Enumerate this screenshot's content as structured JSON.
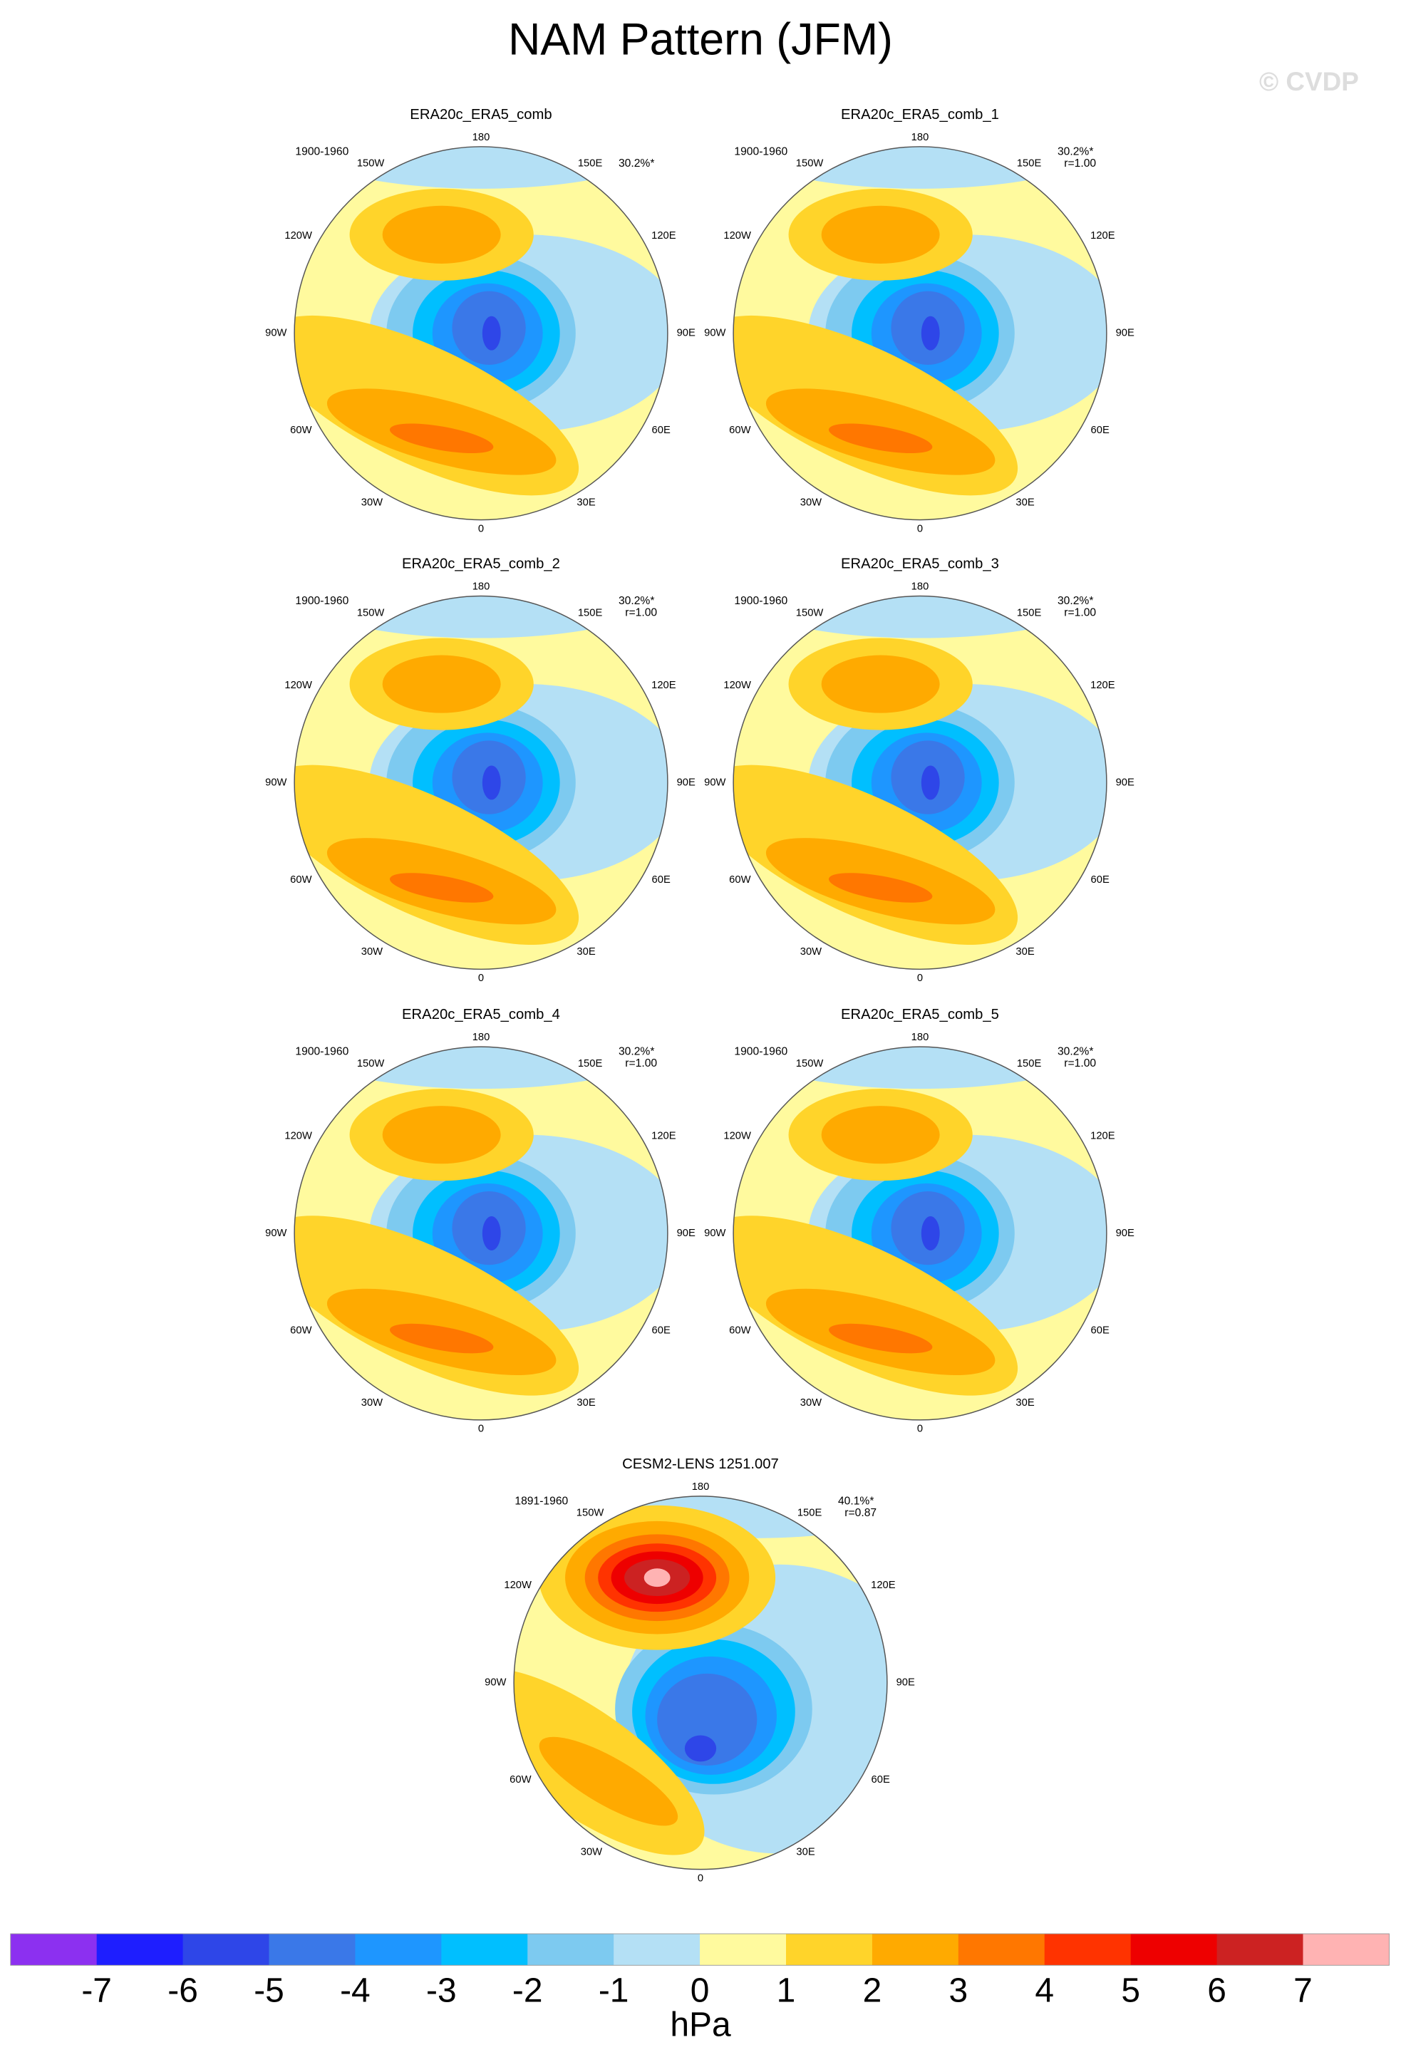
{
  "title": "NAM Pattern (JFM)",
  "watermark": "© CVDP",
  "lon_labels": [
    "180",
    "150E",
    "120E",
    "90E",
    "60E",
    "30E",
    "0",
    "30W",
    "60W",
    "90W",
    "120W",
    "150W"
  ],
  "panels": [
    {
      "title": "ERA20c_ERA5_comb",
      "period": "1900-1960",
      "pct": "30.2%*"
    },
    {
      "title": "ERA20c_ERA5_comb_1",
      "period": "1900-1960",
      "pct": "30.2%*",
      "r": "r=1.00"
    },
    {
      "title": "ERA20c_ERA5_comb_2",
      "period": "1900-1960",
      "pct": "30.2%*",
      "r": "r=1.00"
    },
    {
      "title": "ERA20c_ERA5_comb_3",
      "period": "1900-1960",
      "pct": "30.2%*",
      "r": "r=1.00"
    },
    {
      "title": "ERA20c_ERA5_comb_4",
      "period": "1900-1960",
      "pct": "30.2%*",
      "r": "r=1.00"
    },
    {
      "title": "ERA20c_ERA5_comb_5",
      "period": "1900-1960",
      "pct": "30.2%*",
      "r": "r=1.00"
    },
    {
      "title": "CESM2-LENS 1251.007",
      "period": "1891-1960",
      "pct": "40.1%*",
      "r": "r=0.87"
    }
  ],
  "colorbar": {
    "label": "hPa",
    "range": [
      -8,
      8
    ],
    "ticks": [
      -7,
      -6,
      -5,
      -4,
      -3,
      -2,
      -1,
      0,
      1,
      2,
      3,
      4,
      5,
      6,
      7
    ],
    "colors": [
      "#8c30f0",
      "#1e1eff",
      "#2e46e8",
      "#3a78e8",
      "#1e96ff",
      "#00bfff",
      "#7dcaf0",
      "#b4e0f5",
      "#fffa9e",
      "#ffd42a",
      "#ffaa00",
      "#ff7700",
      "#ff3300",
      "#ee0000",
      "#cc2222",
      "#ffb3b3"
    ]
  }
}
